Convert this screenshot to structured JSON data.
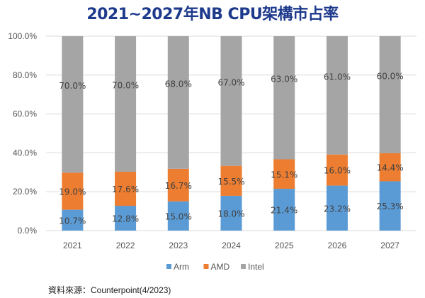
{
  "chart_data": {
    "type": "bar",
    "stacked": true,
    "title": "2021~2027年NB CPU架構市占率",
    "categories": [
      "2021",
      "2022",
      "2023",
      "2024",
      "2025",
      "2026",
      "2027"
    ],
    "series": [
      {
        "name": "Arm",
        "color": "#5b9bd5",
        "values": [
          10.7,
          12.8,
          15.0,
          18.0,
          21.4,
          23.2,
          25.3
        ]
      },
      {
        "name": "AMD",
        "color": "#ed7d31",
        "values": [
          19.0,
          17.6,
          16.7,
          15.5,
          15.1,
          16.0,
          14.4
        ]
      },
      {
        "name": "Intel",
        "color": "#a5a5a5",
        "values": [
          70.0,
          70.0,
          68.0,
          67.0,
          63.0,
          61.0,
          60.0
        ]
      }
    ],
    "ylim": [
      0,
      100
    ],
    "yticks": [
      "0.0%",
      "20.0%",
      "40.0%",
      "60.0%",
      "80.0%",
      "100.0%"
    ],
    "value_format": "percent-1dp",
    "grid": true,
    "legend": "bottom",
    "xlabel": "",
    "ylabel": ""
  },
  "source": "資料來源：Counterpoint(4/2023)"
}
